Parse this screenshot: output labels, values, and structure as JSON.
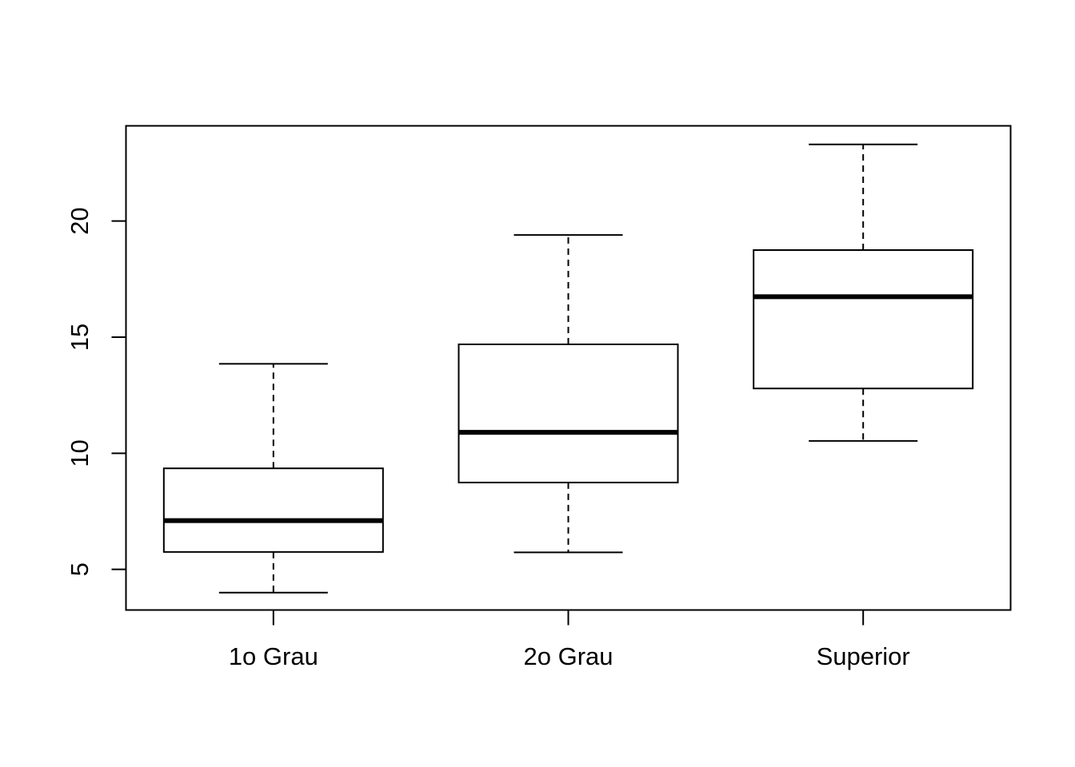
{
  "chart_data": {
    "type": "box",
    "categories": [
      "1o Grau",
      "2o Grau",
      "Superior"
    ],
    "boxes": [
      {
        "name": "1o Grau",
        "whisker_low": 4.0,
        "q1": 5.75,
        "median": 7.1,
        "q3": 9.35,
        "whisker_high": 13.85
      },
      {
        "name": "2o Grau",
        "whisker_low": 5.73,
        "q1": 8.74,
        "median": 10.9,
        "q3": 14.69,
        "whisker_high": 19.4
      },
      {
        "name": "Superior",
        "whisker_low": 10.53,
        "q1": 12.79,
        "median": 16.74,
        "q3": 18.75,
        "whisker_high": 23.3
      }
    ],
    "yticks": [
      "5",
      "10",
      "15",
      "20"
    ],
    "ylim": [
      3.25,
      24.1
    ],
    "title": "",
    "xlabel": "",
    "ylabel": "",
    "grid": false
  }
}
